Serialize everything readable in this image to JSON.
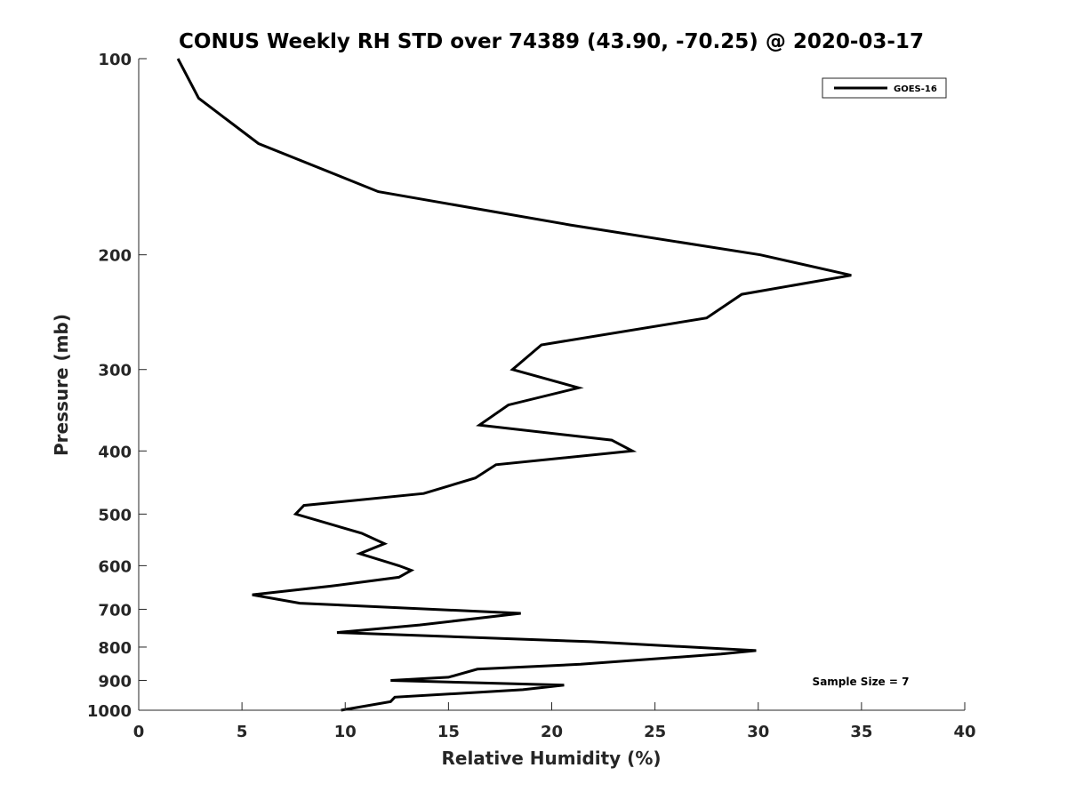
{
  "chart_data": {
    "type": "line",
    "title": "CONUS Weekly RH STD over 74389 (43.90, -70.25) @ 2020-03-17",
    "xlabel": "Relative Humidity (%)",
    "ylabel": "Pressure (mb)",
    "xlim": [
      0,
      40
    ],
    "ylim": [
      100,
      1000
    ],
    "y_scale": "log",
    "y_direction": "reversed",
    "x_ticks": [
      0,
      5,
      10,
      15,
      20,
      25,
      30,
      35,
      40
    ],
    "y_ticks": [
      100,
      200,
      300,
      400,
      500,
      600,
      700,
      800,
      900,
      1000
    ],
    "grid": false,
    "legend_position": "top-right",
    "series": [
      {
        "name": "GOES-16",
        "color": "#000000",
        "x": [
          1.9,
          2.9,
          5.8,
          11.6,
          20.9,
          30.1,
          34.5,
          29.2,
          27.5,
          19.5,
          18.1,
          21.3,
          17.9,
          16.5,
          22.9,
          23.9,
          17.3,
          16.3,
          13.8,
          8.0,
          7.6,
          10.8,
          11.9,
          10.7,
          12.6,
          13.2,
          12.6,
          9.3,
          5.5,
          7.8,
          18.5,
          13.6,
          9.6,
          21.9,
          29.9,
          28.2,
          21.4,
          16.4,
          15.0,
          12.2,
          20.6,
          18.6,
          12.4,
          12.2,
          9.8
        ],
        "y": [
          100,
          115,
          135,
          160,
          180,
          200,
          215,
          230,
          250,
          275,
          300,
          320,
          340,
          365,
          385,
          400,
          420,
          440,
          465,
          485,
          500,
          535,
          555,
          575,
          600,
          610,
          625,
          645,
          665,
          685,
          710,
          740,
          760,
          785,
          810,
          820,
          850,
          865,
          890,
          900,
          915,
          930,
          955,
          970,
          1000
        ]
      }
    ],
    "annotations": [
      "Sample Size = 7"
    ]
  }
}
